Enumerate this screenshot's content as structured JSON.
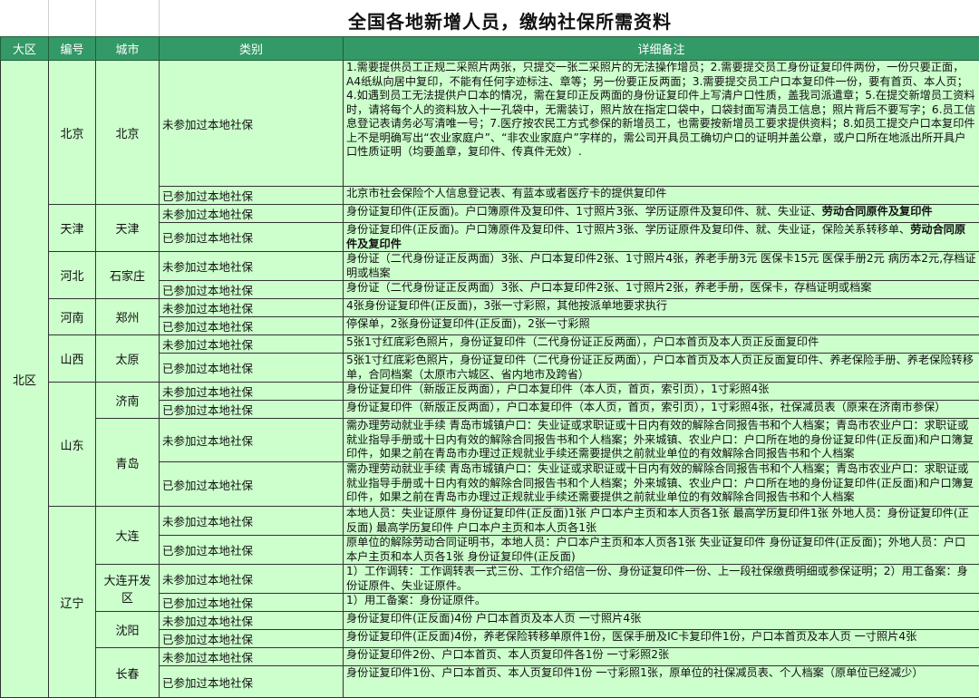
{
  "title": "全国各地新增人员，缴纳社保所需资料",
  "headers": [
    "大区",
    "编号",
    "城市",
    "类别",
    "详细备注"
  ],
  "region": "北区",
  "provinces": [
    {
      "name": "北京",
      "cities": [
        {
          "name": "北京",
          "rows": [
            {
              "category": "未参加过本地社保",
              "detail": "1.需要提供员工正规二采照片两张，只提交一张二采照片的无法操作增员；2.需要提交员工身份证复印件两份，一份只要正面，A4纸纵向居中复印，不能有任何字迹标注、章等；另一份要正反两面；3.需要提交员工户口本复印件一份，要有首页、本人页；4.如遇到员工无法提供户口本的情况，需在复印正反两面的身份证复印件上写清户口性质，盖我司派遣章；5.在提交新增员工资料时，请将每个人的资料放入十一孔袋中，无需装订，照片放在指定口袋中，口袋封面写清员工信息；照片背后不要写字；6.员工信息登记表请务必写清唯一号；7.医疗按农民工方式参保的新增员工，也需要按新增员工要求提供资料；8.如员工提交户口本复印件上不是明确写出“农业家庭户”、“非农业家庭户”字样的，需公司开具员工确切户口的证明并盖公章，或户口所在地派出所开具户口性质证明（均要盖章，复印件、传真件无效）."
            },
            {
              "category": "已参加过本地社保",
              "detail": "北京市社会保险个人信息登记表、有蓝本或者医疗卡的提供复印件"
            }
          ]
        }
      ]
    },
    {
      "name": "天津",
      "cities": [
        {
          "name": "天津",
          "rows": [
            {
              "category": "未参加过本地社保",
              "detail": "身份证复印件(正反面)。户口簿原件及复印件、1寸照片3张、学历证原件及复印件、就、失业证、",
              "detail_bold": "劳动合同原件及复印件"
            },
            {
              "category": "已参加过本地社保",
              "detail": "身份证复印件(正反面)。户口簿原件及复印件、1寸照片3张、学历证原件及复印件、就、失业证，保险关系转移单、",
              "detail_bold": "劳动合同原件及复印件"
            }
          ]
        }
      ]
    },
    {
      "name": "河北",
      "cities": [
        {
          "name": "石家庄",
          "rows": [
            {
              "category": "未参加过本地社保",
              "detail": "身份证（二代身份证正反两面）3张、户口本复印件2张、1寸照片4张，养老手册3元 医保卡15元 医保手册2元 病历本2元,存档证明或档案"
            },
            {
              "category": "已参加过本地社保",
              "detail": "身份证（二代身份证正反两面）3张、户口本复印件2张、1寸照片2张，养老手册，医保卡，存档证明或档案"
            }
          ]
        }
      ]
    },
    {
      "name": "河南",
      "cities": [
        {
          "name": "郑州",
          "rows": [
            {
              "category": "未参加过本地社保",
              "detail": "4张身份证复印件(正反面)，3张一寸彩照，其他按派单地要求执行"
            },
            {
              "category": "已参加过本地社保",
              "detail": "停保单，2张身份证复印件(正反面)，2张一寸彩照"
            }
          ]
        }
      ]
    },
    {
      "name": "山西",
      "cities": [
        {
          "name": "太原",
          "rows": [
            {
              "category": "未参加过本地社保",
              "detail": "5张1寸红底彩色照片，身份证复印件（二代身份证正反两面），户口本首页及本人页正反面复印件"
            },
            {
              "category": "已参加过本地社保",
              "detail": "5张1寸红底彩色照片，身份证复印件（二代身份证正反两面），户口本首页及本人页正反面复印件、养老保险手册、养老保险转移单，合同档案（太原市六城区、省内地市及跨省）"
            }
          ]
        }
      ]
    },
    {
      "name": "山东",
      "cities": [
        {
          "name": "济南",
          "rows": [
            {
              "category": "未参加过本地社保",
              "detail": "身份证复印件（新版正反两面），户口本复印件（本人页，首页，索引页），1寸彩照4张"
            },
            {
              "category": "已参加过本地社保",
              "detail": "身份证复印件（新版正反两面），户口本复印件（本人页，首页，索引页），1寸彩照4张，社保减员表（原来在济南市参保）"
            }
          ]
        },
        {
          "name": "青岛",
          "rows": [
            {
              "category": "未参加过本地社保",
              "detail": "需办理劳动就业手续 青岛市城镇户口：失业证或求职证或十日内有效的解除合同报告书和个人档案；青岛市农业户口：求职证或就业指导手册或十日内有效的解除合同报告书和个人档案；外来城镇、农业户口：户口所在地的身份证复印件(正反面)和户口簿复印件，如果之前在青岛市办理过正规就业手续还需要提供之前就业单位的有效解除合同报告书和个人档案"
            },
            {
              "category": "已参加过本地社保",
              "detail": "需办理劳动就业手续 青岛市城镇户口：失业证或求职证或十日内有效的解除合同报告书和个人档案；青岛市农业户口：求职证或就业指导手册或十日内有效的解除合同报告书和个人档案；外来城镇、农业户口：户口所在地的身份证复印件(正反面)和户口簿复印件，如果之前在青岛市办理过正规就业手续还需要提供之前就业单位的有效解除合同报告书和个人档案"
            }
          ]
        }
      ]
    },
    {
      "name": "辽宁",
      "cities": [
        {
          "name": "大连",
          "rows": [
            {
              "category": "未参加过本地社保",
              "detail": "本地人员：失业证原件 身份证复印件(正反面)1张 户口本户主页和本人页各1张 最高学历复印件1张  外地人员：身份证复印件(正反面) 最高学历复印件 户口本户主页和本人页各1张"
            },
            {
              "category": "已参加过本地社保",
              "detail": "原单位的解除劳动合同证明书，本地人员：户口本户主页和本人页各1张 失业证复印件 身份证复印件(正反面)；外地人员：户口本户主页和本人页各1张 身份证复印件(正反面)"
            }
          ]
        },
        {
          "name": "大连开发区",
          "rows": [
            {
              "category": "未参加过本地社保",
              "detail": "1）工作调转：工作调转表一式三份、工作介绍信一份、身份证复印件一份、上一段社保缴费明细或参保证明；2）用工备案：身份证原件、失业证原件。"
            },
            {
              "category": "已参加过本地社保",
              "detail": "1）用工备案：身份证原件。"
            }
          ]
        },
        {
          "name": "沈阳",
          "rows": [
            {
              "category": "未参加过本地社保",
              "detail": "身份证复印件(正反面)4份 户口本首页及本人页 一寸照片4张"
            },
            {
              "category": "已参加过本地社保",
              "detail": "身份证复印件(正反面)4份，养老保险转移单原件1份，医保手册及IC卡复印件1份，户口本首页及本人页 一寸照片4张"
            }
          ]
        },
        {
          "name": "长春",
          "rows": [
            {
              "category": "未参加过本地社保",
              "detail": "身份证复印件2份、户口本首页、本人页复印件各1份 一寸彩照2张"
            },
            {
              "category": "已参加过本地社保",
              "detail": "身份证复印件1份、户口本首页、本人页复印件1份 一寸彩照1张，原单位的社保减员表、个人档案（原单位已经减少）"
            }
          ]
        }
      ]
    }
  ],
  "colors": {
    "header_bg": "#339966",
    "cell_bg": "#ccffcc",
    "header_text": "#ffffff"
  }
}
